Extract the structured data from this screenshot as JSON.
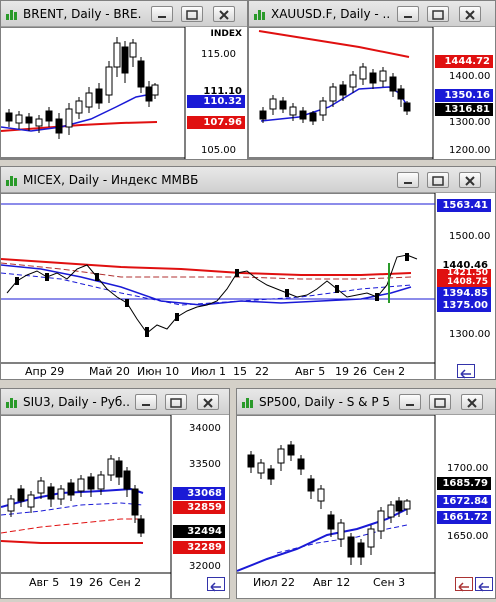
{
  "windows": {
    "brent": {
      "title": "BRENT, Daily - BRE...",
      "axis_label": "INDEX",
      "prices": [
        "115.00",
        "105.00"
      ],
      "tags": [
        {
          "text": "111.10",
          "bg": "#ffffff",
          "fg": "#000000"
        },
        {
          "text": "110.32",
          "bg": "#1a1ad6",
          "fg": "#ffffff"
        },
        {
          "text": "107.96",
          "bg": "#e01010",
          "fg": "#ffffff"
        }
      ]
    },
    "gold": {
      "title": "XAUUSD.F, Daily - ...",
      "prices": [
        "1400.00",
        "1300.00",
        "1200.00"
      ],
      "tags": [
        {
          "text": "1444.72",
          "bg": "#e01010",
          "fg": "#ffffff"
        },
        {
          "text": "1350.16",
          "bg": "#1a1ad6",
          "fg": "#ffffff"
        },
        {
          "text": "1316.81",
          "bg": "#000000",
          "fg": "#ffffff"
        }
      ]
    },
    "micex": {
      "title": "MICEX, Daily - Индекс ММВБ",
      "prices": [
        "1500.00",
        "1300.00"
      ],
      "tags": [
        {
          "text": "1563.41",
          "bg": "#1a1ad6",
          "fg": "#ffffff"
        },
        {
          "text": "1440.46",
          "bg": "#ffffff",
          "fg": "#000000"
        },
        {
          "text": "1421.50",
          "bg": "#e01010",
          "fg": "#ffffff"
        },
        {
          "text": "1408.75",
          "bg": "#e01010",
          "fg": "#ffffff"
        },
        {
          "text": "1394.85",
          "bg": "#1a1ad6",
          "fg": "#ffffff"
        },
        {
          "text": "1375.00",
          "bg": "#1a1ad6",
          "fg": "#ffffff"
        }
      ],
      "dates": [
        "Апр 29",
        "Май 20",
        "Июн 10",
        "Июл 1",
        "15",
        "22",
        "Авг 5",
        "19",
        "26",
        "Сен 2"
      ]
    },
    "siu3": {
      "title": "SIU3, Daily - Руб...",
      "prices": [
        "34000",
        "33500",
        "32000"
      ],
      "tags": [
        {
          "text": "33068",
          "bg": "#1a1ad6",
          "fg": "#ffffff"
        },
        {
          "text": "32859",
          "bg": "#e01010",
          "fg": "#ffffff"
        },
        {
          "text": "32494",
          "bg": "#000000",
          "fg": "#ffffff"
        },
        {
          "text": "32289",
          "bg": "#e01010",
          "fg": "#ffffff"
        }
      ],
      "dates": [
        "Авг 5",
        "19",
        "26",
        "Сен 2"
      ]
    },
    "sp500": {
      "title": "SP500, Daily - S & P 5...",
      "prices": [
        "1700.00",
        "1650.00"
      ],
      "tags": [
        {
          "text": "1685.79",
          "bg": "#000000",
          "fg": "#ffffff"
        },
        {
          "text": "1672.84",
          "bg": "#1a1ad6",
          "fg": "#ffffff"
        },
        {
          "text": "1661.72",
          "bg": "#1a1ad6",
          "fg": "#ffffff"
        }
      ],
      "dates": [
        "Июл 22",
        "Авг 12",
        "Сен 3"
      ]
    }
  }
}
